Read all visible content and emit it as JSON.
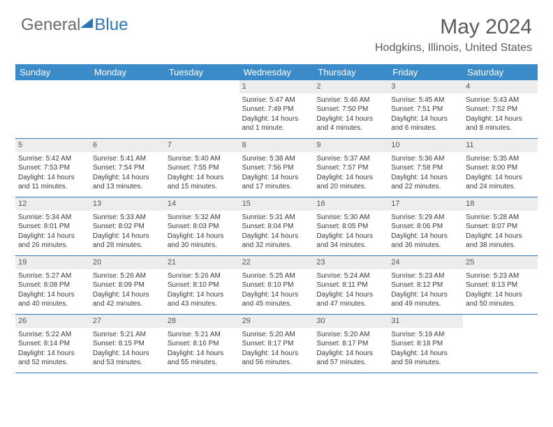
{
  "brand": {
    "part1": "General",
    "part2": "Blue"
  },
  "title": {
    "month": "May 2024",
    "location": "Hodgkins, Illinois, United States"
  },
  "colors": {
    "header_bg": "#3b8bc9",
    "accent": "#2e74b5",
    "daynum_bg": "#ededed",
    "text": "#3a3a3a",
    "muted": "#5a5a5a"
  },
  "dayNames": [
    "Sunday",
    "Monday",
    "Tuesday",
    "Wednesday",
    "Thursday",
    "Friday",
    "Saturday"
  ],
  "weeks": [
    [
      {
        "n": "",
        "sr": "",
        "ss": "",
        "dl": ""
      },
      {
        "n": "",
        "sr": "",
        "ss": "",
        "dl": ""
      },
      {
        "n": "",
        "sr": "",
        "ss": "",
        "dl": ""
      },
      {
        "n": "1",
        "sr": "Sunrise: 5:47 AM",
        "ss": "Sunset: 7:49 PM",
        "dl": "Daylight: 14 hours and 1 minute."
      },
      {
        "n": "2",
        "sr": "Sunrise: 5:46 AM",
        "ss": "Sunset: 7:50 PM",
        "dl": "Daylight: 14 hours and 4 minutes."
      },
      {
        "n": "3",
        "sr": "Sunrise: 5:45 AM",
        "ss": "Sunset: 7:51 PM",
        "dl": "Daylight: 14 hours and 6 minutes."
      },
      {
        "n": "4",
        "sr": "Sunrise: 5:43 AM",
        "ss": "Sunset: 7:52 PM",
        "dl": "Daylight: 14 hours and 8 minutes."
      }
    ],
    [
      {
        "n": "5",
        "sr": "Sunrise: 5:42 AM",
        "ss": "Sunset: 7:53 PM",
        "dl": "Daylight: 14 hours and 11 minutes."
      },
      {
        "n": "6",
        "sr": "Sunrise: 5:41 AM",
        "ss": "Sunset: 7:54 PM",
        "dl": "Daylight: 14 hours and 13 minutes."
      },
      {
        "n": "7",
        "sr": "Sunrise: 5:40 AM",
        "ss": "Sunset: 7:55 PM",
        "dl": "Daylight: 14 hours and 15 minutes."
      },
      {
        "n": "8",
        "sr": "Sunrise: 5:38 AM",
        "ss": "Sunset: 7:56 PM",
        "dl": "Daylight: 14 hours and 17 minutes."
      },
      {
        "n": "9",
        "sr": "Sunrise: 5:37 AM",
        "ss": "Sunset: 7:57 PM",
        "dl": "Daylight: 14 hours and 20 minutes."
      },
      {
        "n": "10",
        "sr": "Sunrise: 5:36 AM",
        "ss": "Sunset: 7:58 PM",
        "dl": "Daylight: 14 hours and 22 minutes."
      },
      {
        "n": "11",
        "sr": "Sunrise: 5:35 AM",
        "ss": "Sunset: 8:00 PM",
        "dl": "Daylight: 14 hours and 24 minutes."
      }
    ],
    [
      {
        "n": "12",
        "sr": "Sunrise: 5:34 AM",
        "ss": "Sunset: 8:01 PM",
        "dl": "Daylight: 14 hours and 26 minutes."
      },
      {
        "n": "13",
        "sr": "Sunrise: 5:33 AM",
        "ss": "Sunset: 8:02 PM",
        "dl": "Daylight: 14 hours and 28 minutes."
      },
      {
        "n": "14",
        "sr": "Sunrise: 5:32 AM",
        "ss": "Sunset: 8:03 PM",
        "dl": "Daylight: 14 hours and 30 minutes."
      },
      {
        "n": "15",
        "sr": "Sunrise: 5:31 AM",
        "ss": "Sunset: 8:04 PM",
        "dl": "Daylight: 14 hours and 32 minutes."
      },
      {
        "n": "16",
        "sr": "Sunrise: 5:30 AM",
        "ss": "Sunset: 8:05 PM",
        "dl": "Daylight: 14 hours and 34 minutes."
      },
      {
        "n": "17",
        "sr": "Sunrise: 5:29 AM",
        "ss": "Sunset: 8:06 PM",
        "dl": "Daylight: 14 hours and 36 minutes."
      },
      {
        "n": "18",
        "sr": "Sunrise: 5:28 AM",
        "ss": "Sunset: 8:07 PM",
        "dl": "Daylight: 14 hours and 38 minutes."
      }
    ],
    [
      {
        "n": "19",
        "sr": "Sunrise: 5:27 AM",
        "ss": "Sunset: 8:08 PM",
        "dl": "Daylight: 14 hours and 40 minutes."
      },
      {
        "n": "20",
        "sr": "Sunrise: 5:26 AM",
        "ss": "Sunset: 8:09 PM",
        "dl": "Daylight: 14 hours and 42 minutes."
      },
      {
        "n": "21",
        "sr": "Sunrise: 5:26 AM",
        "ss": "Sunset: 8:10 PM",
        "dl": "Daylight: 14 hours and 43 minutes."
      },
      {
        "n": "22",
        "sr": "Sunrise: 5:25 AM",
        "ss": "Sunset: 8:10 PM",
        "dl": "Daylight: 14 hours and 45 minutes."
      },
      {
        "n": "23",
        "sr": "Sunrise: 5:24 AM",
        "ss": "Sunset: 8:11 PM",
        "dl": "Daylight: 14 hours and 47 minutes."
      },
      {
        "n": "24",
        "sr": "Sunrise: 5:23 AM",
        "ss": "Sunset: 8:12 PM",
        "dl": "Daylight: 14 hours and 49 minutes."
      },
      {
        "n": "25",
        "sr": "Sunrise: 5:23 AM",
        "ss": "Sunset: 8:13 PM",
        "dl": "Daylight: 14 hours and 50 minutes."
      }
    ],
    [
      {
        "n": "26",
        "sr": "Sunrise: 5:22 AM",
        "ss": "Sunset: 8:14 PM",
        "dl": "Daylight: 14 hours and 52 minutes."
      },
      {
        "n": "27",
        "sr": "Sunrise: 5:21 AM",
        "ss": "Sunset: 8:15 PM",
        "dl": "Daylight: 14 hours and 53 minutes."
      },
      {
        "n": "28",
        "sr": "Sunrise: 5:21 AM",
        "ss": "Sunset: 8:16 PM",
        "dl": "Daylight: 14 hours and 55 minutes."
      },
      {
        "n": "29",
        "sr": "Sunrise: 5:20 AM",
        "ss": "Sunset: 8:17 PM",
        "dl": "Daylight: 14 hours and 56 minutes."
      },
      {
        "n": "30",
        "sr": "Sunrise: 5:20 AM",
        "ss": "Sunset: 8:17 PM",
        "dl": "Daylight: 14 hours and 57 minutes."
      },
      {
        "n": "31",
        "sr": "Sunrise: 5:19 AM",
        "ss": "Sunset: 8:18 PM",
        "dl": "Daylight: 14 hours and 59 minutes."
      },
      {
        "n": "",
        "sr": "",
        "ss": "",
        "dl": ""
      }
    ]
  ]
}
